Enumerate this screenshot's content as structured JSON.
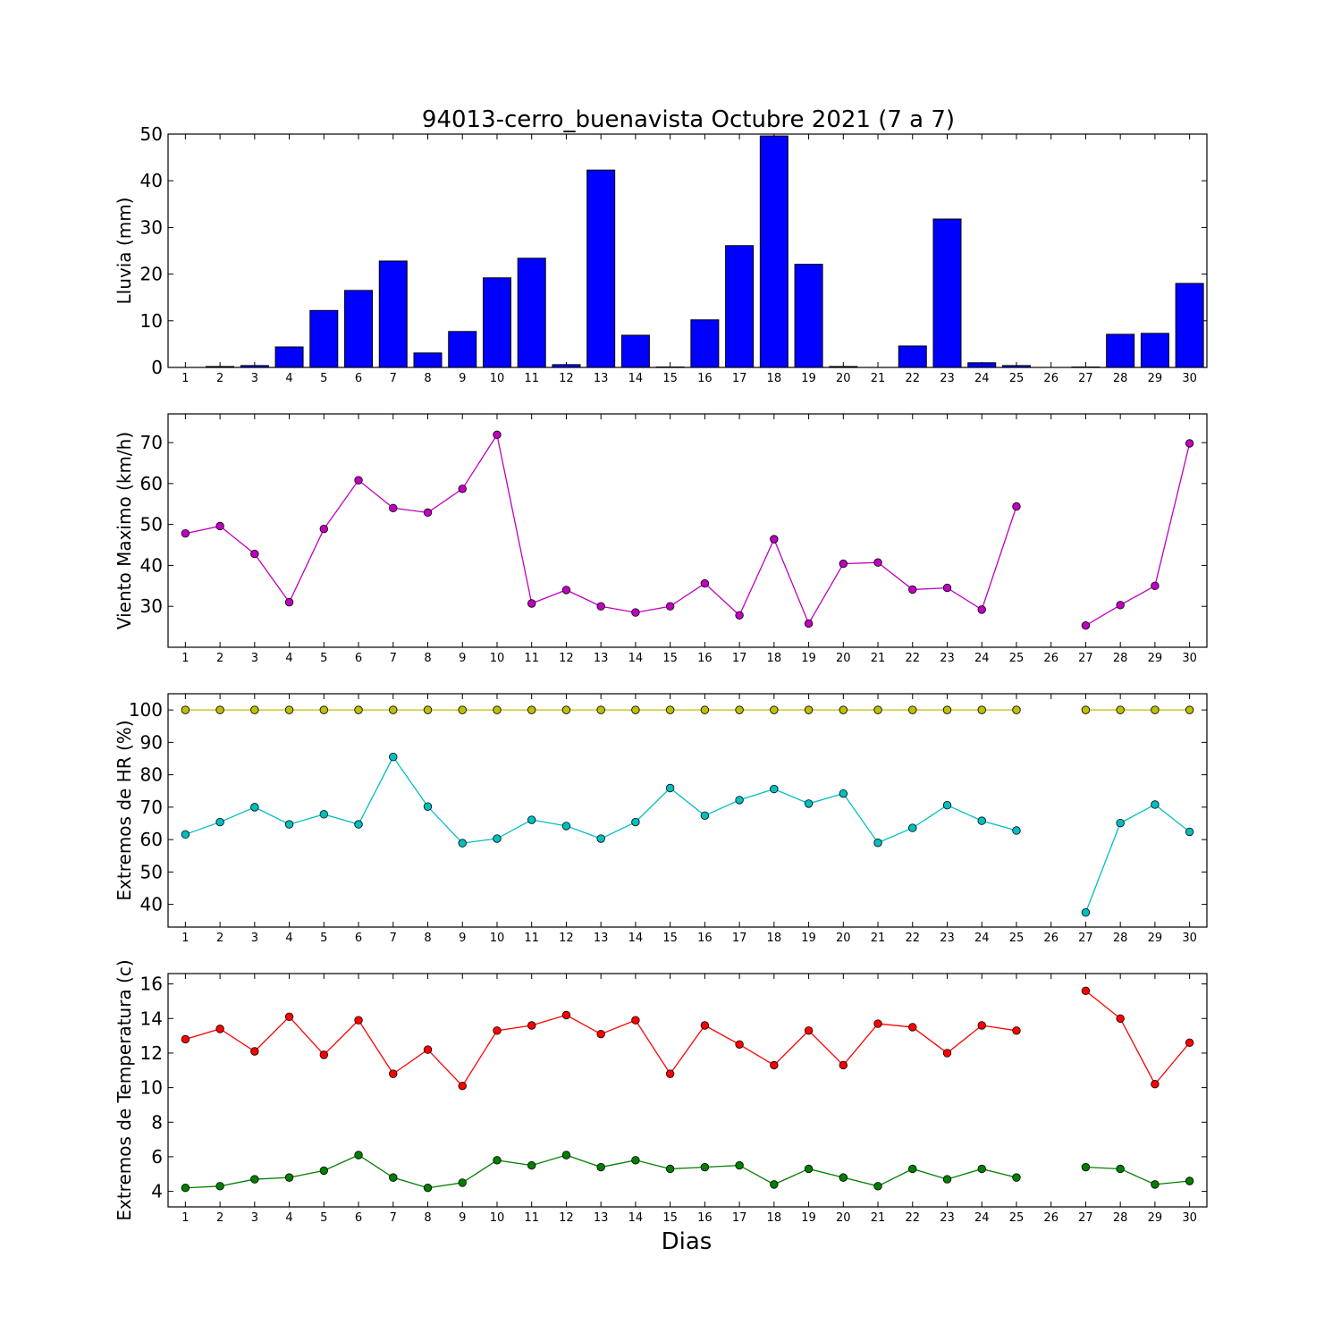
{
  "title": "94013-cerro_buenavista Octubre 2021  (7 a 7)",
  "xlabel": "Dias",
  "chart_data": [
    {
      "type": "bar",
      "ylabel": "Lluvia (mm)",
      "ylim": [
        0,
        50
      ],
      "yticks": [
        0,
        10,
        20,
        30,
        40,
        50
      ],
      "x": [
        1,
        2,
        3,
        4,
        5,
        6,
        7,
        8,
        9,
        10,
        11,
        12,
        13,
        14,
        15,
        16,
        17,
        18,
        19,
        20,
        21,
        22,
        23,
        24,
        25,
        26,
        27,
        28,
        29,
        30
      ],
      "series": [
        {
          "color": "#0000ff",
          "values": [
            0,
            0.2,
            0.4,
            4.4,
            12.2,
            16.5,
            22.8,
            3.1,
            7.7,
            19.2,
            23.4,
            0.6,
            42.3,
            6.9,
            0.1,
            10.2,
            26.1,
            49.6,
            22.1,
            0.2,
            0,
            4.6,
            31.8,
            1.0,
            0.4,
            0,
            0.1,
            7.1,
            7.3,
            18.0
          ]
        }
      ]
    },
    {
      "type": "line",
      "ylabel": "Viento Maximo (km/h)",
      "ylim": [
        20,
        77
      ],
      "yticks": [
        30,
        40,
        50,
        60,
        70
      ],
      "x": [
        1,
        2,
        3,
        4,
        5,
        6,
        7,
        8,
        9,
        10,
        11,
        12,
        13,
        14,
        15,
        16,
        17,
        18,
        19,
        20,
        21,
        22,
        23,
        24,
        25,
        26,
        27,
        28,
        29,
        30
      ],
      "series": [
        {
          "color": "#bf00bf",
          "values": [
            47.8,
            49.6,
            42.8,
            31.0,
            48.9,
            60.8,
            54.0,
            52.9,
            58.7,
            71.9,
            30.7,
            34.0,
            30.0,
            28.5,
            30.0,
            35.6,
            27.8,
            46.4,
            25.8,
            40.4,
            40.7,
            34.1,
            34.5,
            29.2,
            54.4,
            null,
            25.3,
            30.3,
            35.0,
            69.8
          ]
        }
      ]
    },
    {
      "type": "line",
      "ylabel": "Extremos de HR (%)",
      "ylim": [
        33,
        105
      ],
      "yticks": [
        40,
        50,
        60,
        70,
        80,
        90,
        100
      ],
      "x": [
        1,
        2,
        3,
        4,
        5,
        6,
        7,
        8,
        9,
        10,
        11,
        12,
        13,
        14,
        15,
        16,
        17,
        18,
        19,
        20,
        21,
        22,
        23,
        24,
        25,
        26,
        27,
        28,
        29,
        30
      ],
      "series": [
        {
          "color": "#bfbf00",
          "values": [
            100,
            100,
            100,
            100,
            100,
            100,
            100,
            100,
            100,
            100,
            100,
            100,
            100,
            100,
            100,
            100,
            100,
            100,
            100,
            100,
            100,
            100,
            100,
            100,
            100,
            null,
            100,
            100,
            100,
            100
          ]
        },
        {
          "color": "#00bfbf",
          "values": [
            61.6,
            65.4,
            70.0,
            64.7,
            67.8,
            64.7,
            85.5,
            70.2,
            58.9,
            60.3,
            66.1,
            64.2,
            60.3,
            65.4,
            75.9,
            67.4,
            72.2,
            75.6,
            71.1,
            74.2,
            59.0,
            63.6,
            70.6,
            65.8,
            62.8,
            null,
            37.5,
            65.1,
            70.8,
            62.4
          ]
        }
      ]
    },
    {
      "type": "line",
      "ylabel": "Extremos de Temperatura (c)",
      "ylim": [
        3.1,
        16.6
      ],
      "yticks": [
        4,
        6,
        8,
        10,
        12,
        14,
        16
      ],
      "x": [
        1,
        2,
        3,
        4,
        5,
        6,
        7,
        8,
        9,
        10,
        11,
        12,
        13,
        14,
        15,
        16,
        17,
        18,
        19,
        20,
        21,
        22,
        23,
        24,
        25,
        26,
        27,
        28,
        29,
        30
      ],
      "series": [
        {
          "color": "#ff0000",
          "values": [
            12.8,
            13.4,
            12.1,
            14.1,
            11.9,
            13.9,
            10.8,
            12.2,
            10.1,
            13.3,
            13.6,
            14.2,
            13.1,
            13.9,
            10.8,
            13.6,
            12.5,
            11.3,
            13.3,
            11.3,
            13.7,
            13.5,
            12.0,
            13.6,
            13.3,
            null,
            15.6,
            14.0,
            10.2,
            12.6
          ]
        },
        {
          "color": "#007f00",
          "values": [
            4.2,
            4.3,
            4.7,
            4.8,
            5.2,
            6.1,
            4.8,
            4.2,
            4.5,
            5.8,
            5.5,
            6.1,
            5.4,
            5.8,
            5.3,
            5.4,
            5.5,
            4.4,
            5.3,
            4.8,
            4.3,
            5.3,
            4.7,
            5.3,
            4.8,
            null,
            5.4,
            5.3,
            4.4,
            4.6
          ]
        }
      ]
    }
  ]
}
